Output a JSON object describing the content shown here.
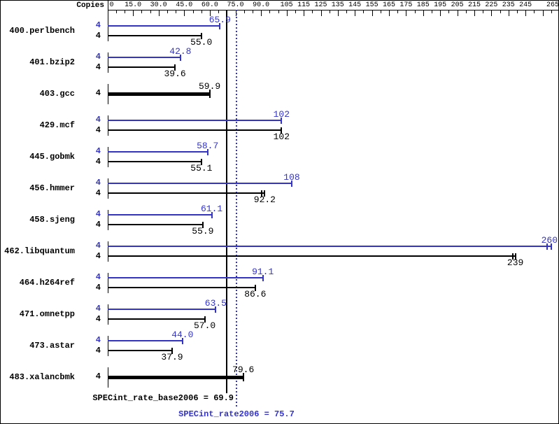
{
  "chart_data": {
    "type": "bar",
    "orientation": "horizontal",
    "copies_header": "Copies",
    "colors": {
      "peak": "#3333cc",
      "base": "#000000",
      "background": "#ffffff"
    },
    "axis": {
      "min": 0,
      "max": 265,
      "minor_step": 5,
      "major_ticks": [
        {
          "v": 0,
          "label": "0"
        },
        {
          "v": 15,
          "label": "15.0"
        },
        {
          "v": 30,
          "label": "30.0"
        },
        {
          "v": 45,
          "label": "45.0"
        },
        {
          "v": 60,
          "label": "60.0"
        },
        {
          "v": 75,
          "label": "75.0"
        },
        {
          "v": 90,
          "label": "90.0"
        },
        {
          "v": 105,
          "label": "105"
        },
        {
          "v": 115,
          "label": "115"
        },
        {
          "v": 125,
          "label": "125"
        },
        {
          "v": 135,
          "label": "135"
        },
        {
          "v": 145,
          "label": "145"
        },
        {
          "v": 155,
          "label": "155"
        },
        {
          "v": 165,
          "label": "165"
        },
        {
          "v": 175,
          "label": "175"
        },
        {
          "v": 185,
          "label": "185"
        },
        {
          "v": 195,
          "label": "195"
        },
        {
          "v": 205,
          "label": "205"
        },
        {
          "v": 215,
          "label": "215"
        },
        {
          "v": 225,
          "label": "225"
        },
        {
          "v": 235,
          "label": "235"
        },
        {
          "v": 245,
          "label": "245"
        },
        {
          "v": 255,
          "label": ""
        },
        {
          "v": 265,
          "label": "265"
        }
      ]
    },
    "benchmarks": [
      {
        "name": "400.perlbench",
        "copies": "4",
        "peak": {
          "value": 65.9,
          "label": "65.9"
        },
        "base": {
          "value": 55.0,
          "label": "55.0"
        }
      },
      {
        "name": "401.bzip2",
        "copies": "4",
        "peak": {
          "value": 42.8,
          "label": "42.8"
        },
        "base": {
          "value": 39.6,
          "label": "39.6"
        }
      },
      {
        "name": "403.gcc",
        "copies": "4",
        "base_only": true,
        "base": {
          "value": 59.9,
          "label": "59.9"
        }
      },
      {
        "name": "429.mcf",
        "copies": "4",
        "peak": {
          "value": 102,
          "label": "102"
        },
        "base": {
          "value": 102,
          "label": "102"
        }
      },
      {
        "name": "445.gobmk",
        "copies": "4",
        "peak": {
          "value": 58.7,
          "label": "58.7"
        },
        "base": {
          "value": 55.1,
          "label": "55.1"
        }
      },
      {
        "name": "456.hmmer",
        "copies": "4",
        "peak": {
          "value": 108,
          "label": "108"
        },
        "base": {
          "value": 92.2,
          "label": "92.2",
          "double_cap": true
        }
      },
      {
        "name": "458.sjeng",
        "copies": "4",
        "peak": {
          "value": 61.1,
          "label": "61.1"
        },
        "base": {
          "value": 55.9,
          "label": "55.9"
        }
      },
      {
        "name": "462.libquantum",
        "copies": "4",
        "peak": {
          "value": 260,
          "label": "260",
          "double_cap": true
        },
        "base": {
          "value": 239,
          "label": "239",
          "double_cap": true
        }
      },
      {
        "name": "464.h264ref",
        "copies": "4",
        "peak": {
          "value": 91.1,
          "label": "91.1"
        },
        "base": {
          "value": 86.6,
          "label": "86.6"
        }
      },
      {
        "name": "471.omnetpp",
        "copies": "4",
        "peak": {
          "value": 63.5,
          "label": "63.5"
        },
        "base": {
          "value": 57.0,
          "label": "57.0"
        }
      },
      {
        "name": "473.astar",
        "copies": "4",
        "peak": {
          "value": 44.0,
          "label": "44.0"
        },
        "base": {
          "value": 37.9,
          "label": "37.9"
        }
      },
      {
        "name": "483.xalancbmk",
        "copies": "4",
        "base_only": true,
        "base": {
          "value": 79.6,
          "label": "79.6"
        }
      }
    ],
    "reference_lines": [
      {
        "name": "SPECint_rate_base2006",
        "value": 69.9,
        "label": "SPECint_rate_base2006 = 69.9",
        "color": "#000000",
        "style": "solid"
      },
      {
        "name": "SPECint_rate2006",
        "value": 75.7,
        "label": "SPECint_rate2006 = 75.7",
        "color": "#3333cc",
        "style": "dotted"
      }
    ]
  }
}
